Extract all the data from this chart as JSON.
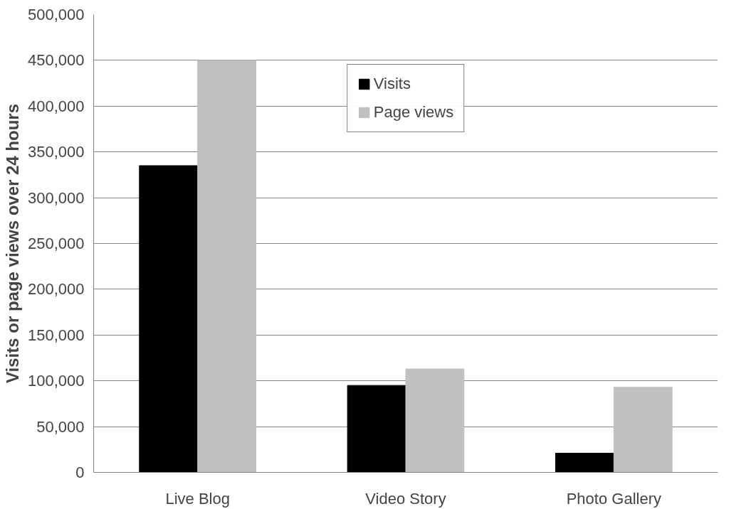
{
  "chart_data": {
    "type": "bar",
    "ylabel": "Visits or page views over 24 hours",
    "categories": [
      "Live Blog",
      "Video Story",
      "Photo Gallery"
    ],
    "series": [
      {
        "name": "Visits",
        "color": "#000000",
        "values": [
          335000,
          95000,
          21000
        ]
      },
      {
        "name": "Page views",
        "color": "#c0c0c0",
        "values": [
          450000,
          113000,
          93000
        ]
      }
    ],
    "ylim": [
      0,
      500000
    ],
    "yticks": [
      {
        "value": 0,
        "label": "0"
      },
      {
        "value": 50000,
        "label": "50,000"
      },
      {
        "value": 100000,
        "label": "100,000"
      },
      {
        "value": 150000,
        "label": "150,000"
      },
      {
        "value": 200000,
        "label": "200,000"
      },
      {
        "value": 250000,
        "label": "250,000"
      },
      {
        "value": 300000,
        "label": "300,000"
      },
      {
        "value": 350000,
        "label": "350,000"
      },
      {
        "value": 400000,
        "label": "400,000"
      },
      {
        "value": 450000,
        "label": "450,000"
      },
      {
        "value": 500000,
        "label": "500,000"
      }
    ],
    "grid": "y",
    "legend": "top"
  }
}
